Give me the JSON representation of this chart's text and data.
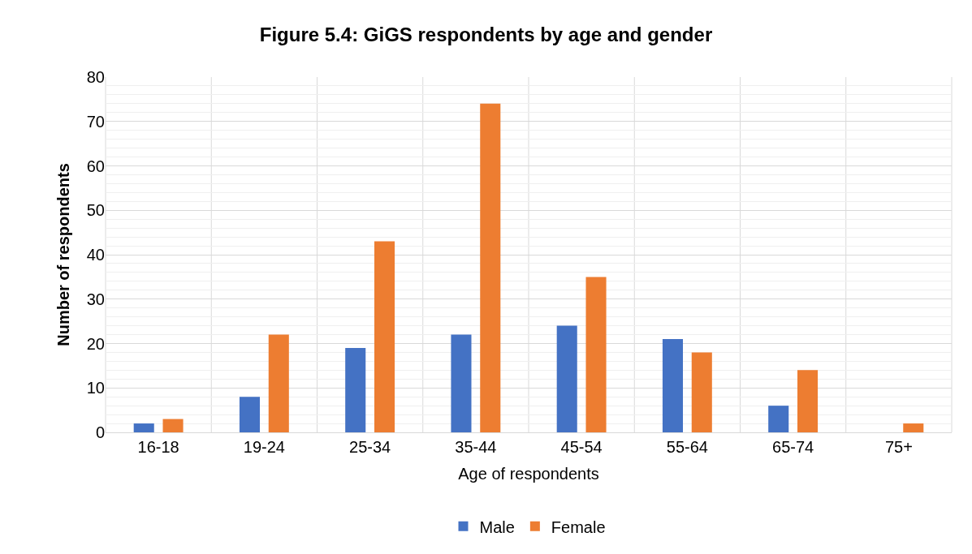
{
  "chart_data": {
    "type": "bar",
    "title": "Figure 5.4: GiGS respondents by age and gender",
    "xlabel": "Age of respondents",
    "ylabel": "Number of respondents",
    "categories": [
      "16-18",
      "19-24",
      "25-34",
      "35-44",
      "45-54",
      "55-64",
      "65-74",
      "75+"
    ],
    "series": [
      {
        "name": "Male",
        "color": "#4472c4",
        "values": [
          2,
          8,
          19,
          22,
          24,
          21,
          6,
          0
        ]
      },
      {
        "name": "Female",
        "color": "#ed7d31",
        "values": [
          3,
          22,
          43,
          74,
          35,
          18,
          14,
          2
        ]
      }
    ],
    "ylim": [
      0,
      80
    ],
    "yticks": [
      0,
      10,
      20,
      30,
      40,
      50,
      60,
      70,
      80
    ],
    "grid": true,
    "legend": "bottom"
  }
}
